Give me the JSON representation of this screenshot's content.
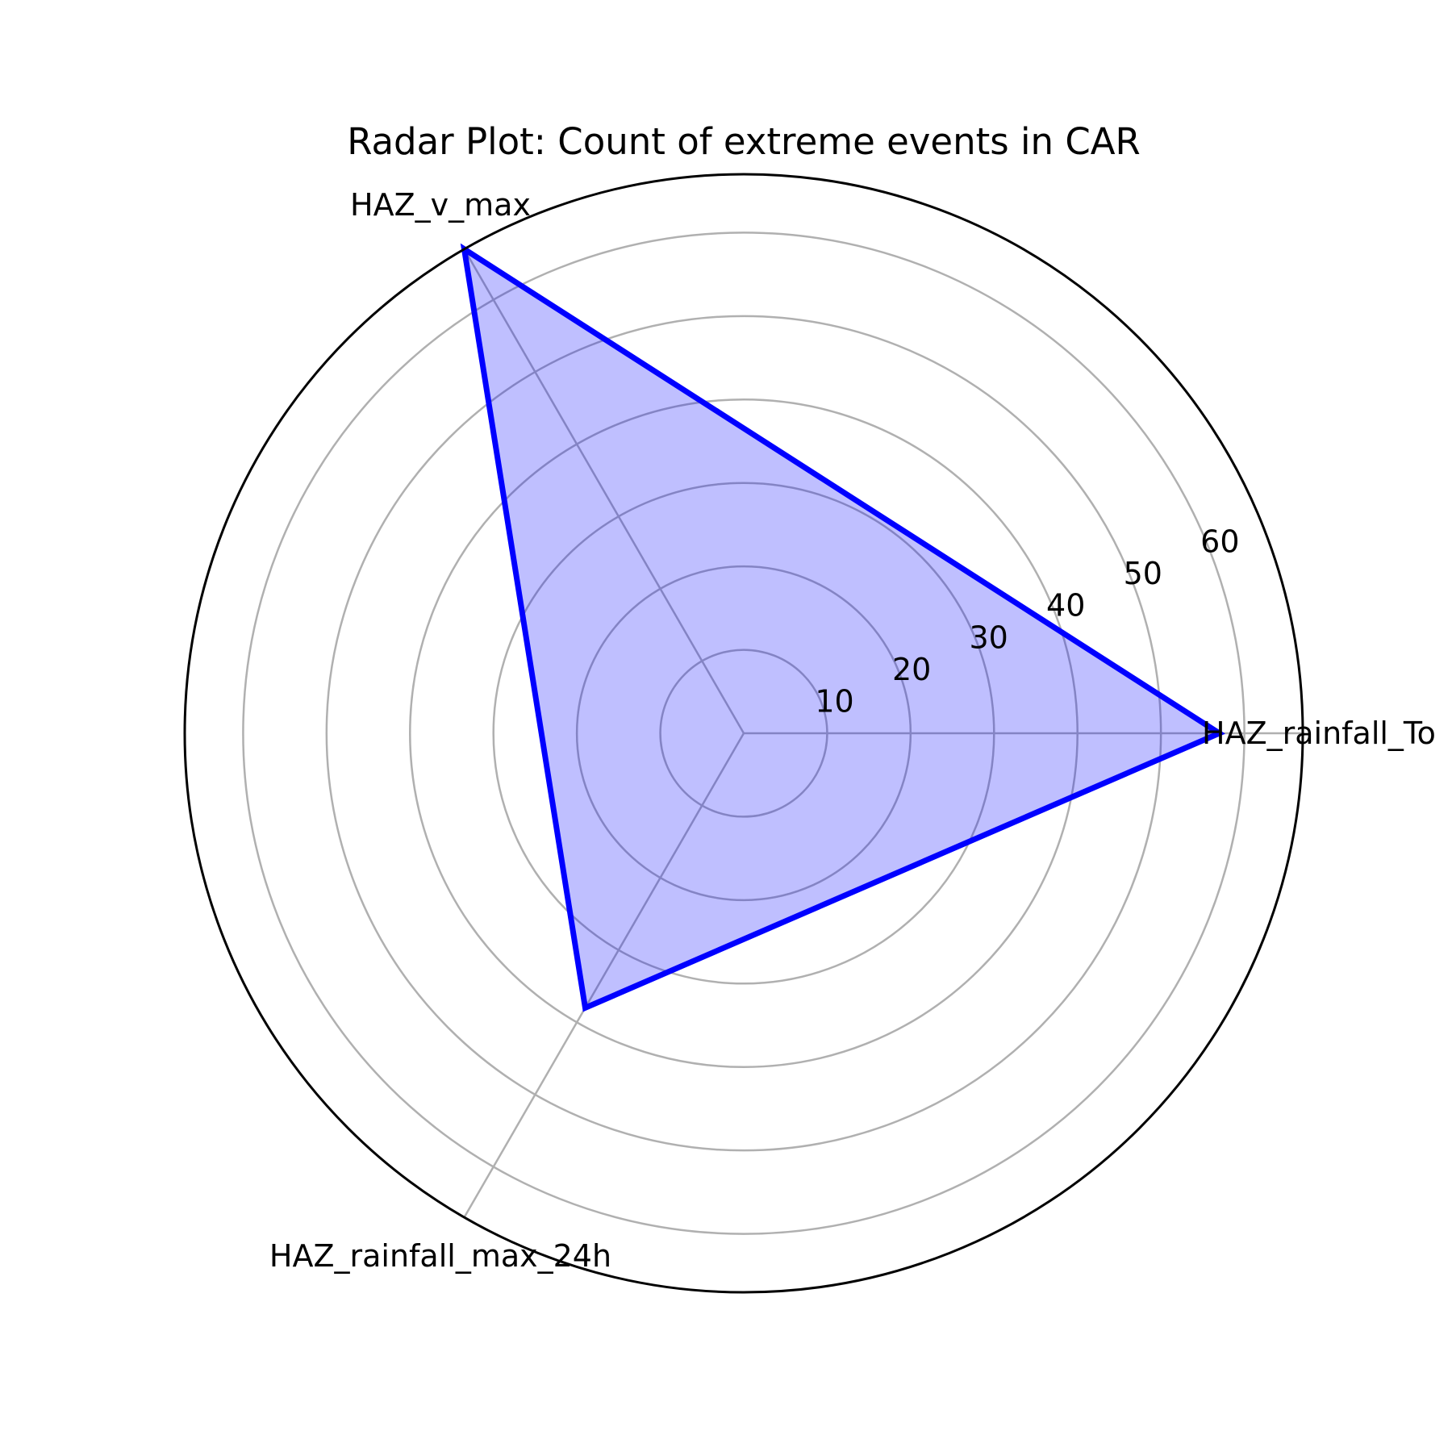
{
  "chart_data": {
    "type": "radar",
    "title": "Radar Plot: Count of extreme events in CAR",
    "categories": [
      "HAZ_rainfall_Total",
      "HAZ_v_max",
      "HAZ_rainfall_max_24h"
    ],
    "category_labels_shown": [
      "HAZ_rainfall_To",
      "HAZ_v_max",
      "HAZ_rainfall_max_24h"
    ],
    "series": [
      {
        "values": [
          57,
          67,
          38
        ]
      }
    ],
    "rlim": [
      0,
      67
    ],
    "rticks": [
      10,
      20,
      30,
      40,
      50,
      60
    ],
    "rtick_labels": [
      "10",
      "20",
      "30",
      "40",
      "50",
      "60"
    ],
    "grid": true,
    "colors": {
      "line": "#0000ff",
      "fill": "#0000ff",
      "fill_opacity": 0.25,
      "grid": "#b0b0b0",
      "frame": "#000000"
    }
  }
}
